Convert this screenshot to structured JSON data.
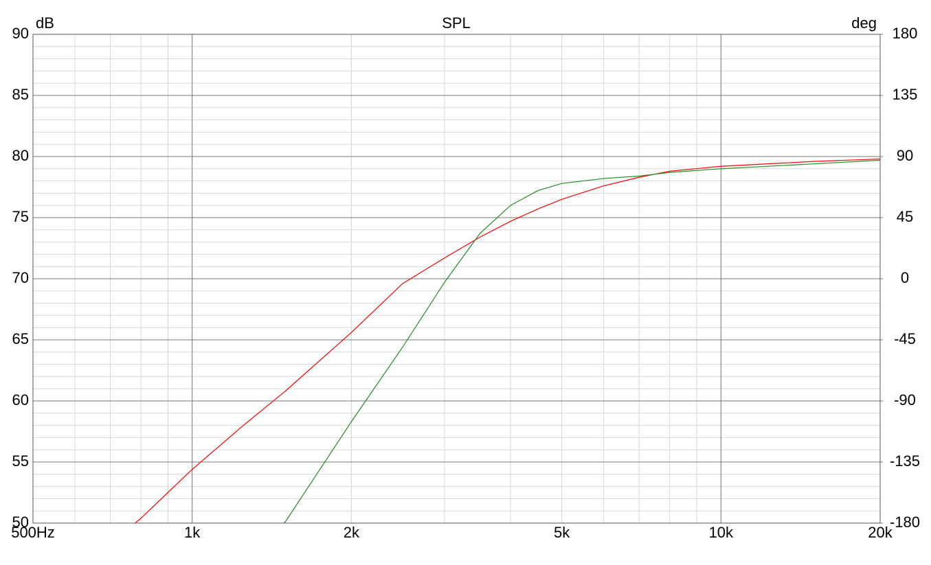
{
  "chart_data": {
    "type": "line",
    "title": "SPL",
    "y_label": "dB",
    "y2_label": "deg",
    "x": [
      780,
      800,
      1000,
      1250,
      1490,
      1500,
      2000,
      2500,
      3000,
      3500,
      4000,
      4500,
      5000,
      6000,
      7000,
      8000,
      10000,
      15000,
      20000
    ],
    "series": [
      {
        "color": "#ff0000",
        "values": [
          50.0,
          50.4,
          54.4,
          58.0,
          60.7,
          60.8,
          65.6,
          69.6,
          71.7,
          73.4,
          74.7,
          75.7,
          76.5,
          77.6,
          78.3,
          78.8,
          79.2,
          79.6,
          79.8
        ]
      },
      {
        "color": "#228b22",
        "values": [
          null,
          null,
          null,
          null,
          50.0,
          50.1,
          58.3,
          64.4,
          69.7,
          73.7,
          76.0,
          77.2,
          77.8,
          78.2,
          78.4,
          78.7,
          79.0,
          79.4,
          79.7
        ]
      }
    ],
    "xscale": "log",
    "xlim": [
      500,
      20000
    ],
    "xticks": [
      {
        "value": 500,
        "label": "500Hz"
      },
      {
        "value": 1000,
        "label": "1k"
      },
      {
        "value": 2000,
        "label": "2k"
      },
      {
        "value": 5000,
        "label": "5k"
      },
      {
        "value": 10000,
        "label": "10k"
      },
      {
        "value": 20000,
        "label": "20k"
      }
    ],
    "ylim": [
      50,
      90
    ],
    "yticks": [
      50,
      55,
      60,
      65,
      70,
      75,
      80,
      85,
      90
    ],
    "y2lim": [
      -180,
      180
    ],
    "y2ticks": [
      -180,
      -135,
      -90,
      -45,
      0,
      45,
      90,
      135,
      180
    ],
    "grid": true
  }
}
